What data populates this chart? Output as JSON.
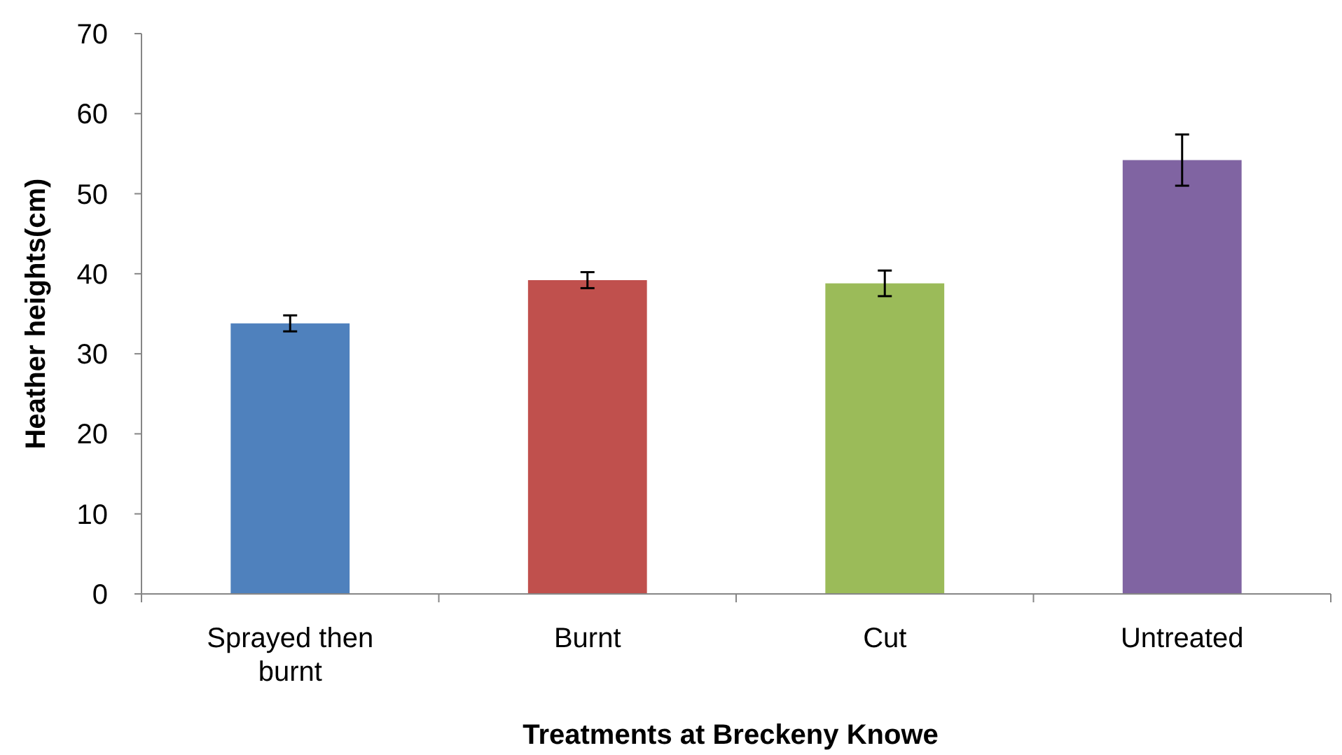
{
  "chart_data": {
    "type": "bar",
    "xlabel": "Treatments at Breckeny Knowe",
    "ylabel": "Heather heights(cm)",
    "categories": [
      "Sprayed then burnt",
      "Burnt",
      "Cut",
      "Untreated"
    ],
    "values": [
      33.8,
      39.2,
      38.8,
      54.2
    ],
    "colors": [
      "#4f81bd",
      "#c0504d",
      "#9bbb59",
      "#8064a2"
    ],
    "errors": [
      1.0,
      1.0,
      1.6,
      3.2
    ],
    "ylim": [
      0,
      70
    ],
    "yticks": [
      0,
      10,
      20,
      30,
      40,
      50,
      60,
      70
    ],
    "grid": false
  }
}
